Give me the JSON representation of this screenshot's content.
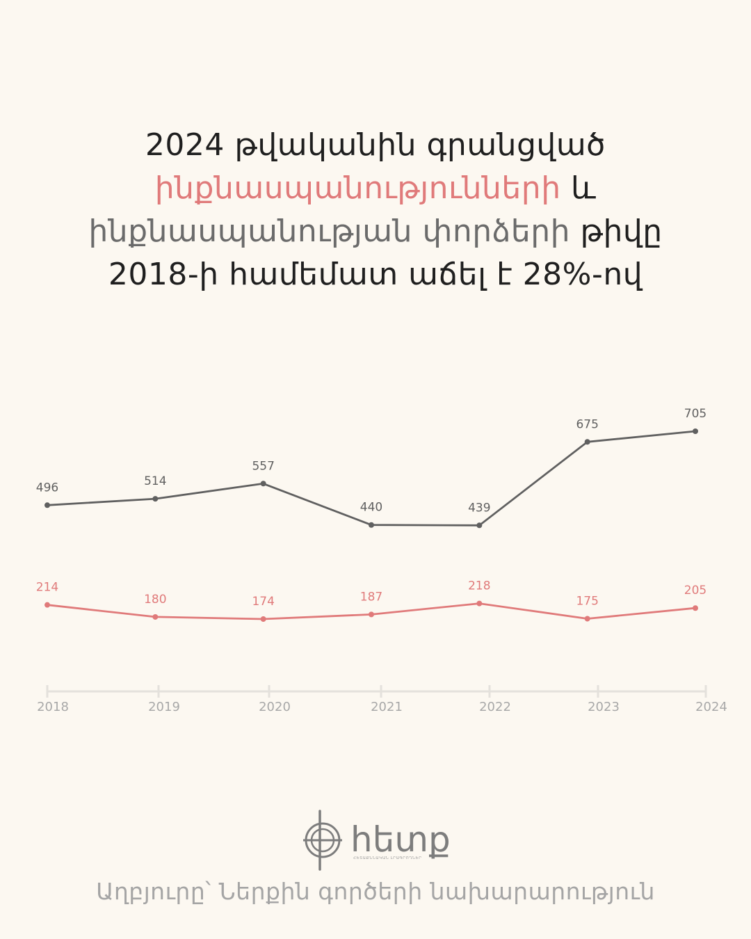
{
  "headline": {
    "line1": "2024 թվականին գրանցված",
    "line2_accent": "ինքնասպանությունների",
    "line2_rest": "և",
    "line3_muted": "ինքնասպանության  փորձերի",
    "line3_rest": "թիվը",
    "line4": "2018-ի համեմատ աճել է 28%-ով"
  },
  "chart_data": {
    "type": "line",
    "x": [
      "2018",
      "2019",
      "2020",
      "2021",
      "2022",
      "2023",
      "2024"
    ],
    "series": [
      {
        "values": [
          496,
          514,
          557,
          440,
          439,
          675,
          705
        ],
        "color": "#606060"
      },
      {
        "values": [
          214,
          180,
          174,
          187,
          218,
          175,
          205
        ],
        "color": "#e07a7a"
      }
    ],
    "grid": false,
    "yaxis_visible": false
  },
  "logo": {
    "text": "հետք",
    "tagline": "ՀԵՏԱՔՆՆԱԿԱՆ ԼՐԱԳՐՈՂՆԵՐ"
  },
  "source": "Աղբյուրը՝ Ներքին գործերի նախարարություն",
  "colors": {
    "background": "#fcf8f1",
    "accent": "#e07a7a",
    "dark": "#1f1f1f",
    "gray": "#606060",
    "axis": "#e4e1dc"
  }
}
